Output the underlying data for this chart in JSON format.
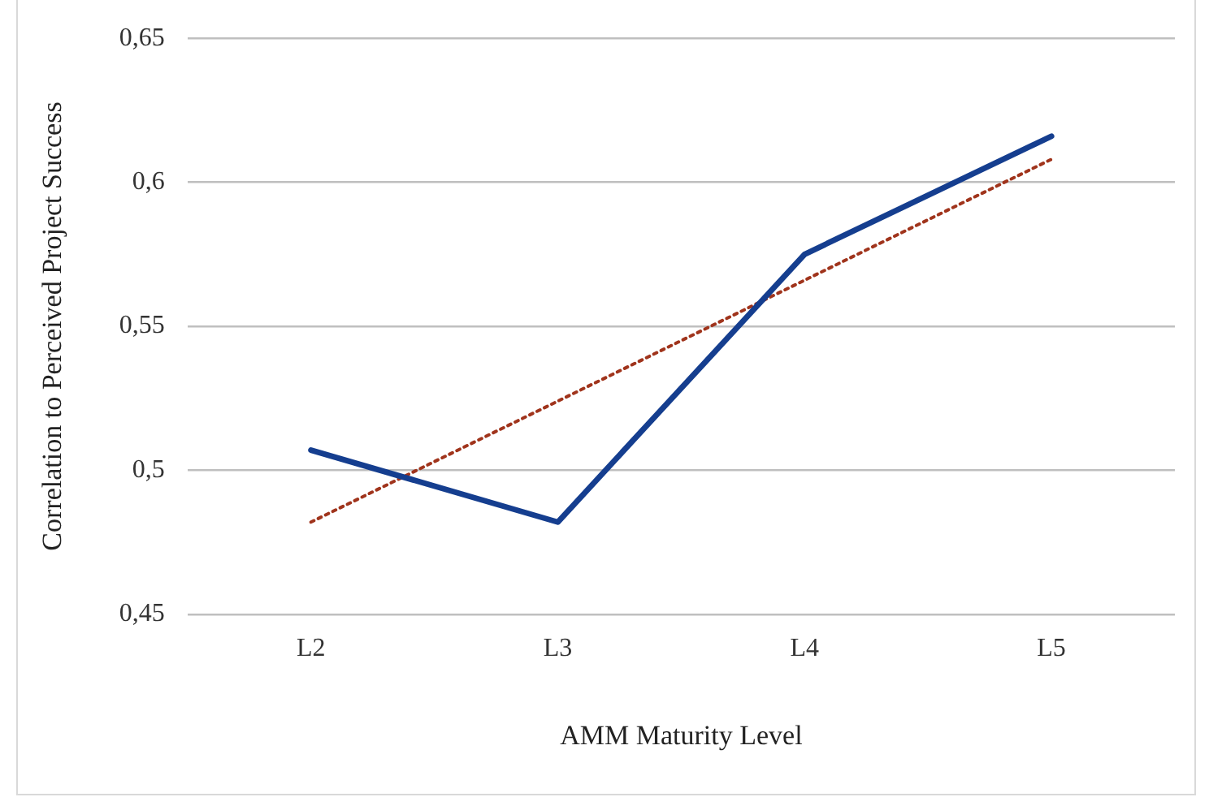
{
  "chart_data": {
    "type": "line",
    "xlabel": "AMM Maturity Level",
    "ylabel": "Correlation to Perceived Project Success",
    "categories": [
      "L2",
      "L3",
      "L4",
      "L5"
    ],
    "series": [
      {
        "name": null,
        "color": "#153e8f",
        "values": [
          0.507,
          0.482,
          0.575,
          0.616
        ]
      },
      {
        "type": "line",
        "color": "#a0341c",
        "line_style": "dotted",
        "values": [
          0.482,
          0.524,
          0.566,
          0.608
        ]
      }
    ],
    "ylim": [
      0.45,
      0.65
    ],
    "yticks": [
      {
        "value": 0.45,
        "label": "0,45"
      },
      {
        "value": 0.5,
        "label": "0,5"
      },
      {
        "value": 0.55,
        "label": "0,55"
      },
      {
        "value": 0.6,
        "label": "0,6"
      },
      {
        "value": 0.65,
        "label": "0,65"
      }
    ],
    "grid": "y",
    "legend": false,
    "marker": "none",
    "line_style": "solid"
  }
}
